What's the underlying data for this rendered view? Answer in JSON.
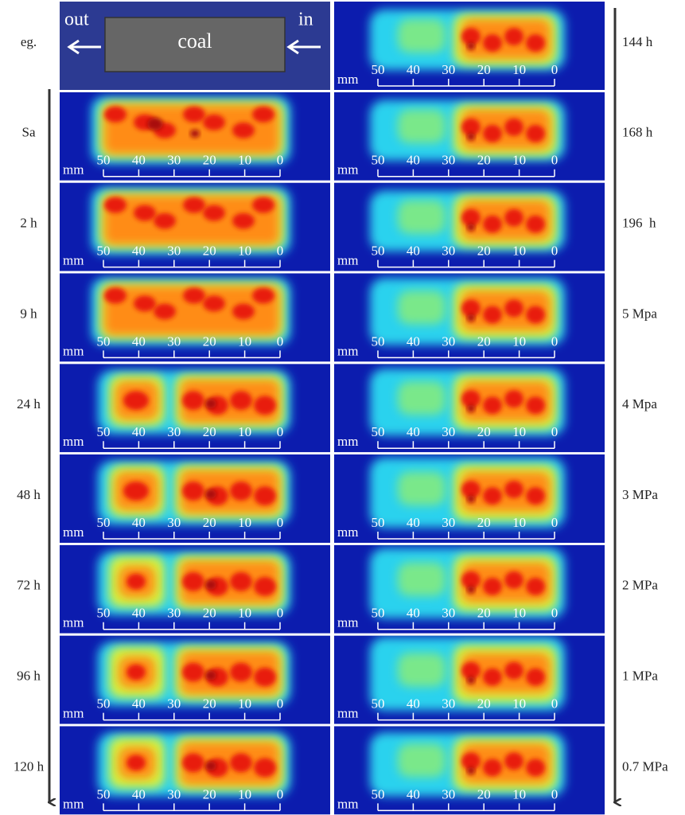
{
  "diagram": {
    "out": "out",
    "in": "in",
    "coal": "coal"
  },
  "left_labels": [
    "eg.",
    "Sa",
    "2 h",
    "9 h",
    "24 h",
    "48 h",
    "72 h",
    "96 h",
    "120 h"
  ],
  "right_labels": [
    "144 h",
    "168 h",
    "196  h",
    "5 Mpa",
    "4 Mpa",
    "3 MPa",
    "2 MPa",
    "1 MPa",
    "0.7 MPa"
  ],
  "scale": {
    "unit": "mm",
    "ticks": [
      "50",
      "40",
      "30",
      "20",
      "10",
      "0"
    ]
  }
}
